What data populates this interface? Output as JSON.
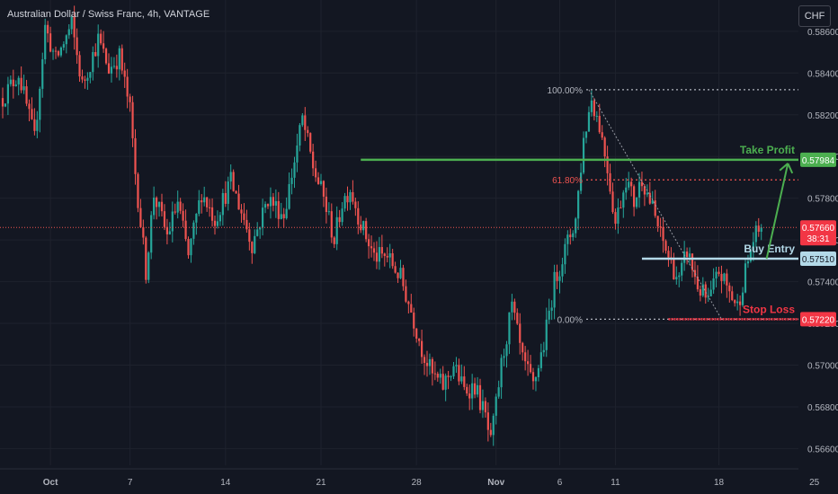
{
  "header": {
    "title": "Australian Dollar / Swiss Franc, 4h, VANTAGE",
    "currency_button": "CHF"
  },
  "colors": {
    "background": "#131722",
    "grid": "#1e222d",
    "axis_text": "#b2b5be",
    "bull": "#26a69a",
    "bear": "#ef5350",
    "take_profit": "#4caf50",
    "stop_loss": "#f23645",
    "entry": "#b3d9e8",
    "fib_text": "#b2b5be"
  },
  "chart_data": {
    "type": "candlestick",
    "ylim": [
      0.5652,
      0.5875
    ],
    "y_ticks": [
      "0.56600",
      "0.56800",
      "0.57000",
      "0.57200",
      "0.57400",
      "0.57600",
      "0.57800",
      "0.58000",
      "0.58200",
      "0.58400",
      "0.58600"
    ],
    "x_ticks": [
      {
        "label": "Oct",
        "bar": 18
      },
      {
        "label": "7",
        "bar": 48
      },
      {
        "label": "14",
        "bar": 84
      },
      {
        "label": "21",
        "bar": 120
      },
      {
        "label": "28",
        "bar": 156
      },
      {
        "label": "Nov",
        "bar": 186
      },
      {
        "label": "6",
        "bar": 210
      },
      {
        "label": "11",
        "bar": 231
      },
      {
        "label": "18",
        "bar": 270
      },
      {
        "label": "25",
        "bar": 306
      }
    ],
    "waypoints": [
      [
        0,
        0.5828
      ],
      [
        6,
        0.584
      ],
      [
        12,
        0.5808
      ],
      [
        16,
        0.5862
      ],
      [
        20,
        0.5846
      ],
      [
        26,
        0.5863
      ],
      [
        30,
        0.5834
      ],
      [
        36,
        0.5856
      ],
      [
        40,
        0.5842
      ],
      [
        44,
        0.5848
      ],
      [
        48,
        0.5822
      ],
      [
        50,
        0.5792
      ],
      [
        54,
        0.5745
      ],
      [
        57,
        0.5782
      ],
      [
        62,
        0.5762
      ],
      [
        66,
        0.5778
      ],
      [
        70,
        0.5752
      ],
      [
        75,
        0.5783
      ],
      [
        80,
        0.577
      ],
      [
        86,
        0.5788
      ],
      [
        91,
        0.577
      ],
      [
        94,
        0.5758
      ],
      [
        100,
        0.578
      ],
      [
        106,
        0.5772
      ],
      [
        110,
        0.5798
      ],
      [
        113,
        0.5818
      ],
      [
        117,
        0.5795
      ],
      [
        121,
        0.578
      ],
      [
        125,
        0.576
      ],
      [
        128,
        0.5778
      ],
      [
        131,
        0.5785
      ],
      [
        135,
        0.5768
      ],
      [
        140,
        0.5752
      ],
      [
        145,
        0.5752
      ],
      [
        150,
        0.5742
      ],
      [
        154,
        0.5726
      ],
      [
        158,
        0.5708
      ],
      [
        162,
        0.5695
      ],
      [
        166,
        0.569
      ],
      [
        170,
        0.57
      ],
      [
        174,
        0.5688
      ],
      [
        178,
        0.569
      ],
      [
        182,
        0.5675
      ],
      [
        184,
        0.5662
      ],
      [
        188,
        0.57
      ],
      [
        192,
        0.5728
      ],
      [
        196,
        0.5702
      ],
      [
        200,
        0.569
      ],
      [
        204,
        0.571
      ],
      [
        208,
        0.574
      ],
      [
        212,
        0.5755
      ],
      [
        216,
        0.577
      ],
      [
        219,
        0.5808
      ],
      [
        222,
        0.5828
      ],
      [
        225,
        0.5815
      ],
      [
        228,
        0.5795
      ],
      [
        231,
        0.5768
      ],
      [
        235,
        0.579
      ],
      [
        238,
        0.5778
      ],
      [
        241,
        0.579
      ],
      [
        245,
        0.5775
      ],
      [
        248,
        0.5762
      ],
      [
        251,
        0.5752
      ],
      [
        255,
        0.574
      ],
      [
        258,
        0.5755
      ],
      [
        262,
        0.5738
      ],
      [
        266,
        0.573
      ],
      [
        270,
        0.5745
      ],
      [
        274,
        0.5735
      ],
      [
        277,
        0.5728
      ],
      [
        280,
        0.5745
      ],
      [
        283,
        0.576
      ],
      [
        286,
        0.5766
      ]
    ],
    "last_price": 0.5766,
    "last_price_label": "0.57660",
    "countdown": "38:31",
    "levels": {
      "take_profit": {
        "label": "Take Profit",
        "price": 0.57984,
        "price_label": "0.57984",
        "start_bar": 135
      },
      "buy_entry": {
        "label": "Buy Entry",
        "price": 0.5751,
        "price_label": "0.57510",
        "start_bar": 241
      },
      "stop_loss": {
        "label": "Stop Loss",
        "price": 0.5722,
        "price_label": "0.57220",
        "start_bar": 251
      }
    },
    "fibonacci": {
      "levels": [
        {
          "label": "100.00%",
          "price": 0.5832
        },
        {
          "label": "61.80%",
          "price": 0.57888
        },
        {
          "label": "0.00%",
          "price": 0.5722
        }
      ],
      "start_bar": 220,
      "end_bar": 328,
      "trend_from": [
        221,
        0.5832
      ],
      "trend_to": [
        271,
        0.5722
      ]
    },
    "projection": {
      "from": [
        288,
        0.5751
      ],
      "to": [
        294,
        0.57984
      ]
    }
  }
}
